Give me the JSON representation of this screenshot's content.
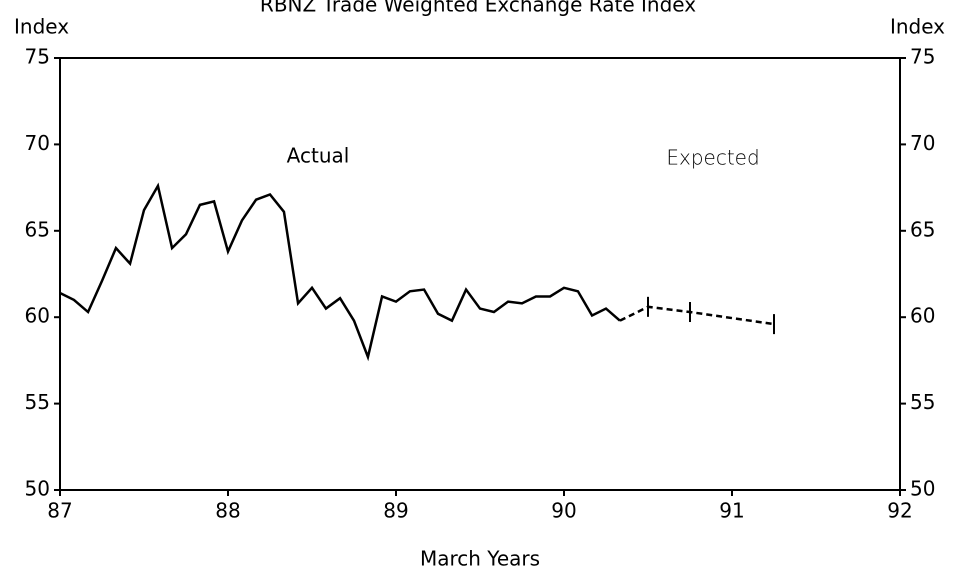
{
  "chart_data": {
    "type": "line",
    "title": "RBNZ Trade Weighted Exchange Rate Index",
    "ylabel": "Index",
    "y2label": "Index",
    "xlabel": "March Years",
    "annotations": [
      "Actual",
      "Expected"
    ],
    "xlim": [
      87,
      92
    ],
    "xticks": [
      87,
      88,
      89,
      90,
      91,
      92
    ],
    "ylim": [
      50,
      75
    ],
    "yticks": [
      50,
      55,
      60,
      65,
      70,
      75
    ],
    "y2lim": [
      50,
      75
    ],
    "y2ticks": [
      50,
      55,
      60,
      65,
      70,
      75
    ],
    "series": [
      {
        "name": "Actual",
        "color": "#000000",
        "dash": false,
        "x": [
          87,
          87.083,
          87.167,
          87.25,
          87.333,
          87.417,
          87.5,
          87.583,
          87.667,
          87.75,
          87.833,
          87.917,
          88,
          88.083,
          88.167,
          88.25,
          88.333,
          88.417,
          88.5,
          88.583,
          88.667,
          88.75,
          88.833,
          88.917,
          89,
          89.083,
          89.167,
          89.25,
          89.333,
          89.417,
          89.5,
          89.583,
          89.667,
          89.75,
          89.833,
          89.917,
          90,
          90.083,
          90.167,
          90.25,
          90.333
        ],
        "values": [
          61.4,
          61.0,
          60.3,
          62.1,
          64.0,
          63.1,
          66.2,
          67.6,
          64.0,
          64.8,
          66.5,
          66.7,
          63.8,
          65.6,
          66.8,
          67.1,
          66.1,
          60.8,
          61.7,
          60.5,
          61.1,
          59.8,
          57.7,
          61.2,
          60.9,
          61.5,
          61.6,
          60.2,
          59.8,
          61.6,
          60.5,
          60.3,
          60.9,
          60.8,
          61.2,
          61.2,
          61.7,
          61.5,
          60.1,
          60.5,
          59.8
        ]
      },
      {
        "name": "Expected",
        "color": "#000000",
        "dash": true,
        "x": [
          90.333,
          90.5,
          90.75,
          91.25
        ],
        "values": [
          59.8,
          60.6,
          60.3,
          59.6
        ]
      }
    ]
  }
}
